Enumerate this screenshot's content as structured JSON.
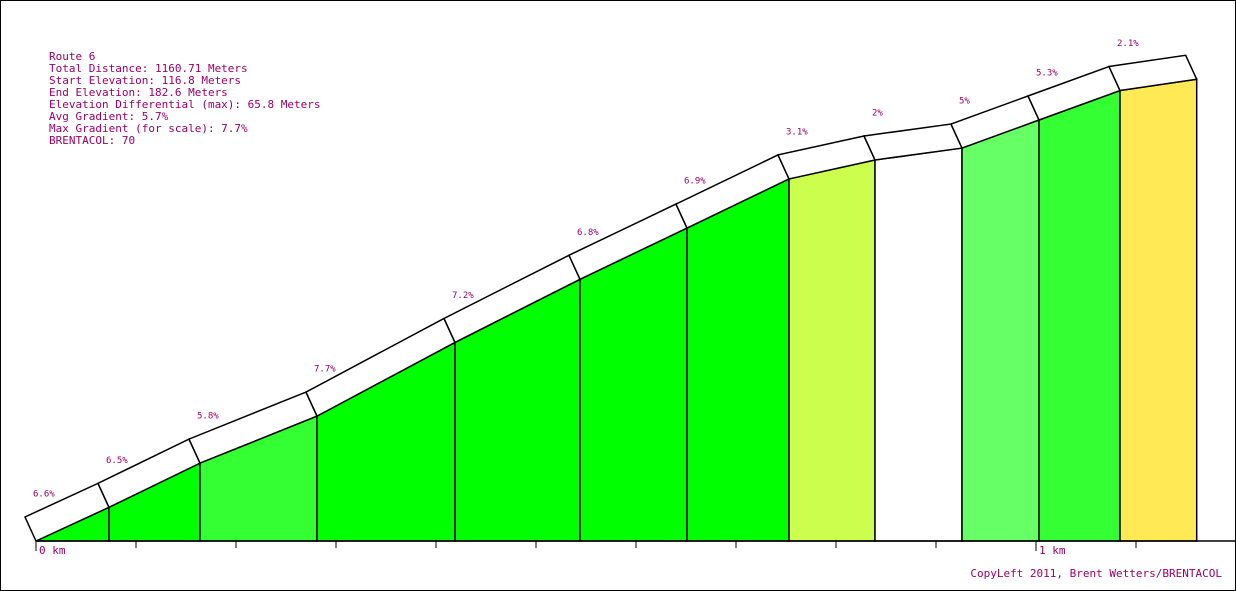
{
  "chart_data": {
    "type": "elevation-profile",
    "info": [
      "Route 6",
      "Total Distance: 1160.71 Meters",
      "Start Elevation: 116.8 Meters",
      "End Elevation: 182.6 Meters",
      "Elevation Differential (max): 65.8 Meters",
      "Avg Gradient: 5.7%",
      "Max Gradient (for scale): 7.7%",
      "BRENTACOL: 70"
    ],
    "credit": "CopyLeft 2011, Brent Wetters/BRENTACOL",
    "x": [
      0,
      0.073,
      0.164,
      0.281,
      0.419,
      0.544,
      0.651,
      0.753,
      0.839,
      0.926,
      1.003,
      1.084,
      1.1607
    ],
    "values": [
      116.8,
      121.6,
      127.9,
      134.6,
      145.1,
      154.1,
      161.4,
      168.4,
      171.1,
      172.8,
      176.8,
      181.0,
      182.6
    ],
    "xlim": [
      0,
      1.2
    ],
    "ylim": [
      116.8,
      193.9
    ],
    "xticks": [
      0,
      0.1,
      0.2,
      0.3,
      0.4,
      0.5,
      0.6,
      0.7,
      0.8,
      0.9,
      1,
      1.1
    ],
    "xtick_labels": [
      {
        "value": 0,
        "label": "0 km"
      },
      {
        "value": 1,
        "label": "1 km"
      }
    ],
    "segments": {
      "values": [
        6.6,
        6.5,
        5.8,
        7.7,
        7.2,
        6.8,
        6.9,
        3.1,
        2,
        5,
        5.3,
        2.1
      ],
      "value_labels": [
        "6.6%",
        "6.5%",
        "5.8%",
        "7.7%",
        "7.2%",
        "6.8%",
        "6.9%",
        "3.1%",
        "2%",
        "5%",
        "5.3%",
        "2.1%"
      ],
      "colors": [
        "#00ff00",
        "#00ff00",
        "#33ff33",
        "#00ff00",
        "#00ff00",
        "#00ff00",
        "#00ff00",
        "#ccff4d",
        "#ffffff",
        "#66ff66",
        "#33ff33",
        "#ffea55"
      ]
    },
    "text_color": "#990066"
  }
}
